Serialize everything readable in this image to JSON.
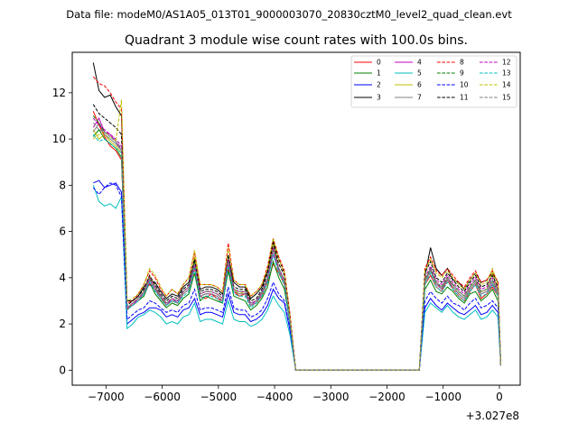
{
  "header": {
    "file_label": "Data file: modeM0/AS1A05_013T01_9000003070_20830cztM0_level2_quad_clean.evt"
  },
  "chart_data": {
    "type": "line",
    "title": "Quadrant 3 module wise count rates with 100.0s bins.",
    "xlabel": "",
    "ylabel": "",
    "offset_label": "+3.027e8",
    "xlim": [
      -7600,
      370
    ],
    "ylim": [
      -0.65,
      13.75
    ],
    "xticks": [
      -7000,
      -6000,
      -5000,
      -4000,
      -3000,
      -2000,
      -1000,
      0
    ],
    "xtick_labels": [
      "−7000",
      "−6000",
      "−5000",
      "−4000",
      "−3000",
      "−2000",
      "−1000",
      "0"
    ],
    "yticks": [
      0,
      2,
      4,
      6,
      8,
      10,
      12
    ],
    "ytick_labels": [
      "0",
      "2",
      "4",
      "6",
      "8",
      "10",
      "12"
    ],
    "legend_position": "upper-right",
    "x": [
      -7225,
      -7125,
      -7025,
      -6925,
      -6825,
      -6725,
      -6625,
      -6525,
      -6425,
      -6325,
      -6225,
      -6125,
      -6025,
      -5925,
      -5825,
      -5725,
      -5625,
      -5525,
      -5425,
      -5325,
      -5225,
      -5125,
      -5025,
      -4925,
      -4825,
      -4725,
      -4625,
      -4525,
      -4425,
      -4325,
      -4225,
      -4125,
      -4025,
      -3925,
      -3825,
      -3725,
      -3625,
      -3525,
      -1425,
      -1325,
      -1225,
      -1125,
      -1025,
      -925,
      -825,
      -725,
      -625,
      -525,
      -425,
      -325,
      -225,
      -125,
      -25,
      25
    ],
    "series": [
      {
        "name": "0",
        "color": "#ff0000",
        "dash": "solid",
        "values": [
          11.2,
          10.6,
          10.1,
          9.7,
          9.5,
          9.1,
          2.6,
          2.9,
          3.1,
          3.4,
          3.7,
          3.5,
          3.2,
          2.8,
          3.0,
          2.9,
          3.3,
          3.5,
          4.4,
          3.2,
          3.1,
          3.3,
          3.1,
          3.0,
          4.4,
          3.4,
          3.2,
          3.3,
          2.8,
          2.9,
          3.2,
          3.8,
          4.6,
          4.2,
          3.7,
          2.0,
          0.0,
          0.0,
          0.0,
          3.7,
          4.1,
          3.6,
          3.4,
          3.9,
          3.5,
          3.2,
          3.0,
          3.4,
          3.7,
          3.1,
          3.3,
          3.6,
          3.2,
          0.2
        ]
      },
      {
        "name": "1",
        "color": "#008000",
        "dash": "solid",
        "values": [
          10.1,
          10.4,
          10.0,
          9.8,
          9.6,
          9.2,
          2.7,
          2.8,
          3.0,
          3.2,
          3.8,
          3.3,
          3.0,
          2.7,
          2.9,
          2.8,
          3.1,
          3.3,
          4.2,
          3.0,
          3.2,
          3.1,
          3.0,
          2.9,
          4.3,
          3.2,
          3.1,
          3.0,
          2.6,
          2.8,
          3.1,
          3.6,
          4.7,
          4.0,
          3.5,
          2.0,
          0.0,
          0.0,
          0.0,
          3.5,
          3.9,
          3.4,
          3.3,
          3.6,
          3.4,
          3.1,
          2.9,
          3.3,
          3.4,
          3.0,
          3.2,
          3.5,
          3.0,
          0.2
        ]
      },
      {
        "name": "2",
        "color": "#0000ff",
        "dash": "solid",
        "values": [
          8.1,
          8.2,
          7.9,
          8.0,
          8.1,
          7.7,
          2.0,
          2.2,
          2.4,
          2.5,
          2.7,
          2.7,
          2.6,
          2.3,
          2.4,
          2.3,
          2.6,
          2.7,
          3.1,
          2.4,
          2.5,
          2.5,
          2.4,
          2.3,
          3.3,
          2.5,
          2.4,
          2.4,
          2.1,
          2.2,
          2.4,
          2.8,
          3.5,
          3.1,
          2.9,
          1.7,
          0.0,
          0.0,
          0.0,
          2.7,
          3.1,
          2.8,
          2.6,
          2.9,
          2.7,
          2.5,
          2.4,
          2.6,
          2.8,
          2.4,
          2.5,
          2.8,
          2.5,
          0.2
        ]
      },
      {
        "name": "3",
        "color": "#000000",
        "dash": "solid",
        "values": [
          13.3,
          12.1,
          11.8,
          11.9,
          11.4,
          11.0,
          3.0,
          3.0,
          3.2,
          3.6,
          3.9,
          3.8,
          3.4,
          3.1,
          3.3,
          3.2,
          3.6,
          3.8,
          4.8,
          3.5,
          3.6,
          3.6,
          3.5,
          3.3,
          4.9,
          3.8,
          3.6,
          3.6,
          3.1,
          3.3,
          3.6,
          4.3,
          5.6,
          4.8,
          4.2,
          2.3,
          0.0,
          0.0,
          0.0,
          4.1,
          5.3,
          4.4,
          4.1,
          4.4,
          3.9,
          3.8,
          3.5,
          3.9,
          4.2,
          3.8,
          3.9,
          4.2,
          3.8,
          0.2
        ]
      },
      {
        "name": "4",
        "color": "#bf00bf",
        "dash": "solid",
        "values": [
          10.5,
          10.9,
          10.3,
          10.2,
          9.9,
          9.5,
          2.7,
          2.8,
          3.1,
          3.3,
          3.8,
          3.5,
          3.1,
          2.8,
          3.1,
          2.9,
          3.3,
          3.5,
          4.5,
          3.2,
          3.3,
          3.3,
          3.2,
          3.0,
          4.6,
          3.4,
          3.3,
          3.3,
          2.8,
          3.0,
          3.3,
          3.9,
          5.0,
          4.3,
          3.8,
          2.1,
          0.0,
          0.0,
          0.0,
          3.8,
          4.3,
          3.8,
          3.5,
          4.0,
          3.6,
          3.3,
          3.1,
          3.5,
          3.8,
          3.3,
          3.4,
          3.7,
          3.3,
          0.2
        ]
      },
      {
        "name": "5",
        "color": "#00bfbf",
        "dash": "solid",
        "values": [
          8.0,
          7.3,
          7.1,
          7.2,
          7.0,
          7.5,
          1.8,
          2.0,
          2.3,
          2.4,
          2.6,
          2.5,
          2.3,
          2.0,
          2.1,
          2.0,
          2.3,
          2.4,
          2.9,
          2.1,
          2.2,
          2.2,
          2.1,
          2.0,
          3.0,
          2.2,
          2.1,
          2.1,
          1.9,
          2.0,
          2.2,
          2.6,
          3.2,
          2.8,
          2.5,
          1.5,
          0.0,
          0.0,
          0.0,
          2.5,
          2.9,
          2.7,
          2.5,
          2.8,
          2.5,
          2.3,
          2.2,
          2.4,
          2.6,
          2.2,
          2.3,
          2.6,
          2.3,
          0.2
        ]
      },
      {
        "name": "6",
        "color": "#bfbf00",
        "dash": "solid",
        "values": [
          10.4,
          10.0,
          10.2,
          9.9,
          9.7,
          9.4,
          2.7,
          2.9,
          3.1,
          3.4,
          4.1,
          3.6,
          3.2,
          2.9,
          3.1,
          3.0,
          3.4,
          3.6,
          4.9,
          3.3,
          3.4,
          3.4,
          3.3,
          3.1,
          4.9,
          3.5,
          3.3,
          3.4,
          2.9,
          3.0,
          3.4,
          4.0,
          5.5,
          4.4,
          3.9,
          2.1,
          0.0,
          0.0,
          0.0,
          3.9,
          4.4,
          3.8,
          3.6,
          4.0,
          3.7,
          3.4,
          3.2,
          3.6,
          3.9,
          3.4,
          3.5,
          4.2,
          3.4,
          0.2
        ]
      },
      {
        "name": "7",
        "color": "#808080",
        "dash": "solid",
        "values": [
          10.3,
          10.7,
          10.2,
          10.0,
          9.8,
          9.5,
          2.7,
          2.8,
          3.0,
          3.3,
          3.9,
          3.5,
          3.1,
          2.8,
          3.0,
          2.9,
          3.3,
          3.5,
          4.6,
          3.2,
          3.3,
          3.3,
          3.2,
          3.0,
          4.7,
          3.4,
          3.3,
          3.3,
          2.8,
          2.9,
          3.3,
          3.9,
          5.2,
          4.3,
          3.8,
          2.1,
          0.0,
          0.0,
          0.0,
          3.8,
          4.3,
          3.7,
          3.5,
          3.9,
          3.6,
          3.3,
          3.1,
          3.5,
          3.8,
          3.3,
          3.4,
          3.8,
          3.3,
          0.2
        ]
      },
      {
        "name": "8",
        "color": "#ff0000",
        "dash": "dashed",
        "values": [
          12.7,
          12.4,
          12.3,
          12.0,
          11.6,
          11.3,
          2.9,
          3.0,
          3.3,
          3.7,
          4.3,
          4.0,
          3.5,
          3.2,
          3.5,
          3.3,
          3.7,
          4.0,
          5.1,
          3.7,
          3.7,
          3.7,
          3.6,
          3.4,
          5.5,
          3.9,
          3.7,
          3.7,
          3.2,
          3.4,
          3.7,
          4.5,
          5.7,
          4.9,
          4.3,
          2.4,
          0.0,
          0.0,
          0.0,
          4.4,
          4.9,
          4.3,
          4.1,
          4.4,
          4.1,
          3.8,
          3.6,
          4.0,
          4.3,
          3.8,
          3.9,
          4.3,
          3.8,
          0.2
        ]
      },
      {
        "name": "9",
        "color": "#008000",
        "dash": "dashed",
        "values": [
          11.0,
          10.7,
          10.3,
          10.1,
          9.9,
          9.6,
          2.7,
          2.9,
          3.1,
          3.4,
          4.0,
          3.6,
          3.2,
          2.9,
          3.1,
          3.0,
          3.4,
          3.6,
          4.7,
          3.3,
          3.4,
          3.4,
          3.3,
          3.1,
          4.8,
          3.5,
          3.4,
          3.4,
          2.9,
          3.0,
          3.4,
          4.0,
          5.3,
          4.4,
          3.9,
          2.1,
          0.0,
          0.0,
          0.0,
          3.9,
          4.4,
          3.8,
          3.6,
          4.0,
          3.7,
          3.4,
          3.2,
          3.6,
          3.9,
          3.4,
          3.5,
          3.9,
          3.4,
          0.2
        ]
      },
      {
        "name": "10",
        "color": "#0000ff",
        "dash": "dashed",
        "values": [
          7.9,
          7.6,
          7.9,
          8.1,
          8.0,
          7.5,
          2.2,
          2.4,
          2.6,
          2.7,
          3.0,
          2.9,
          2.7,
          2.5,
          2.6,
          2.5,
          2.8,
          2.9,
          3.5,
          2.6,
          2.7,
          2.7,
          2.6,
          2.5,
          3.6,
          2.7,
          2.6,
          2.6,
          2.3,
          2.4,
          2.6,
          3.1,
          3.8,
          3.3,
          3.0,
          1.8,
          0.0,
          0.0,
          0.0,
          3.0,
          3.4,
          3.1,
          2.9,
          3.2,
          2.9,
          2.8,
          2.6,
          2.9,
          3.1,
          2.7,
          2.8,
          3.0,
          2.7,
          0.2
        ]
      },
      {
        "name": "11",
        "color": "#000000",
        "dash": "dashed",
        "values": [
          11.5,
          11.1,
          10.9,
          10.7,
          10.5,
          10.2,
          2.8,
          3.0,
          3.2,
          3.5,
          4.1,
          3.7,
          3.3,
          3.0,
          3.2,
          3.1,
          3.5,
          3.7,
          4.8,
          3.4,
          3.5,
          3.5,
          3.4,
          3.2,
          5.0,
          3.6,
          3.5,
          3.5,
          3.0,
          3.1,
          3.5,
          4.2,
          5.5,
          4.6,
          4.1,
          2.2,
          0.0,
          0.0,
          0.0,
          4.2,
          4.7,
          4.0,
          3.8,
          4.2,
          3.9,
          3.6,
          3.4,
          3.8,
          4.1,
          3.6,
          3.7,
          4.1,
          3.6,
          0.2
        ]
      },
      {
        "name": "12",
        "color": "#bf00bf",
        "dash": "dashed",
        "values": [
          10.9,
          10.6,
          10.4,
          10.2,
          10.0,
          9.7,
          2.7,
          2.9,
          3.1,
          3.4,
          4.0,
          3.6,
          3.2,
          2.9,
          3.1,
          3.0,
          3.4,
          3.6,
          4.6,
          3.3,
          3.4,
          3.4,
          3.3,
          3.1,
          4.8,
          3.5,
          3.4,
          3.4,
          2.9,
          3.0,
          3.4,
          4.0,
          5.3,
          4.4,
          3.9,
          2.1,
          0.0,
          0.0,
          0.0,
          4.0,
          4.5,
          3.9,
          3.7,
          4.1,
          3.8,
          3.5,
          3.3,
          3.7,
          4.0,
          3.5,
          3.6,
          4.0,
          3.5,
          0.2
        ]
      },
      {
        "name": "13",
        "color": "#00bfbf",
        "dash": "dashed",
        "values": [
          10.2,
          9.9,
          10.0,
          9.8,
          9.6,
          9.4,
          2.6,
          2.8,
          3.0,
          3.3,
          3.8,
          3.4,
          3.1,
          2.8,
          3.0,
          2.9,
          3.2,
          3.4,
          4.4,
          3.1,
          3.2,
          3.2,
          3.1,
          2.9,
          4.5,
          3.3,
          3.2,
          3.2,
          2.7,
          2.9,
          3.2,
          3.8,
          5.0,
          4.2,
          3.7,
          2.0,
          0.0,
          0.0,
          0.0,
          3.7,
          4.2,
          3.6,
          3.4,
          3.8,
          3.5,
          3.2,
          3.0,
          3.4,
          3.7,
          3.2,
          3.3,
          3.7,
          3.2,
          0.2
        ]
      },
      {
        "name": "14",
        "color": "#bfbf00",
        "dash": "dashed",
        "values": [
          10.0,
          10.2,
          10.3,
          10.1,
          9.9,
          11.7,
          3.0,
          3.1,
          3.3,
          3.7,
          4.4,
          4.1,
          3.6,
          3.2,
          3.5,
          3.3,
          3.7,
          4.0,
          5.2,
          3.7,
          3.7,
          3.7,
          3.6,
          3.4,
          5.3,
          3.9,
          3.7,
          3.7,
          3.2,
          3.4,
          3.7,
          4.4,
          5.7,
          4.8,
          4.2,
          2.3,
          0.0,
          0.0,
          0.0,
          4.3,
          4.8,
          4.2,
          4.0,
          4.3,
          4.0,
          3.7,
          3.5,
          3.9,
          4.2,
          3.7,
          3.8,
          4.4,
          3.7,
          0.2
        ]
      },
      {
        "name": "15",
        "color": "#808080",
        "dash": "dashed",
        "values": [
          10.7,
          10.4,
          10.3,
          10.1,
          9.9,
          9.6,
          2.7,
          2.9,
          3.1,
          3.4,
          3.9,
          3.6,
          3.2,
          2.9,
          3.1,
          3.0,
          3.4,
          3.6,
          4.6,
          3.3,
          3.4,
          3.4,
          3.3,
          3.1,
          4.7,
          3.5,
          3.4,
          3.4,
          2.9,
          3.0,
          3.4,
          4.0,
          5.2,
          4.4,
          3.9,
          2.1,
          0.0,
          0.0,
          0.0,
          3.9,
          4.4,
          3.8,
          3.6,
          4.0,
          3.7,
          3.4,
          3.2,
          3.6,
          3.9,
          3.4,
          3.5,
          3.9,
          3.4,
          0.2
        ]
      }
    ]
  }
}
